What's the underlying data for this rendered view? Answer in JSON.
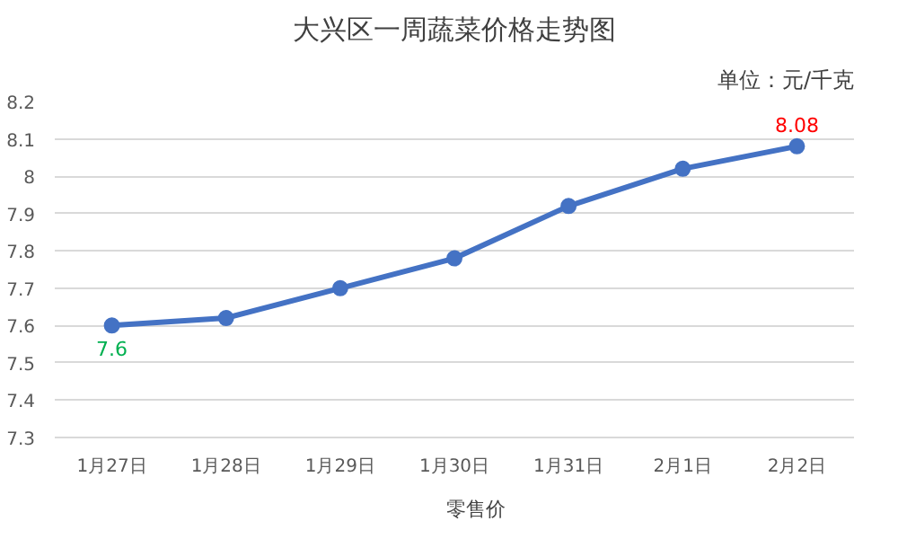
{
  "chart_data": {
    "type": "line",
    "title": "大兴区一周蔬菜价格走势图",
    "annotations": [
      "单位：元/千克"
    ],
    "categories": [
      "1月27日",
      "1月28日",
      "1月29日",
      "1月30日",
      "1月31日",
      "2月1日",
      "2月2日"
    ],
    "series": [
      {
        "name": "零售价",
        "color": "#4472c4",
        "values": [
          7.6,
          7.62,
          7.7,
          7.78,
          7.92,
          8.02,
          8.08
        ],
        "value_labels": [
          "7.6",
          null,
          null,
          null,
          null,
          null,
          "8.08"
        ]
      }
    ],
    "ylim": [
      7.3,
      8.2
    ],
    "yticks": [
      7.3,
      7.4,
      7.5,
      7.6,
      7.7,
      7.8,
      7.9,
      8,
      8.1,
      8.2
    ],
    "grid": "y",
    "legend": "bottom",
    "marker": "circle",
    "line_style": "solid"
  }
}
